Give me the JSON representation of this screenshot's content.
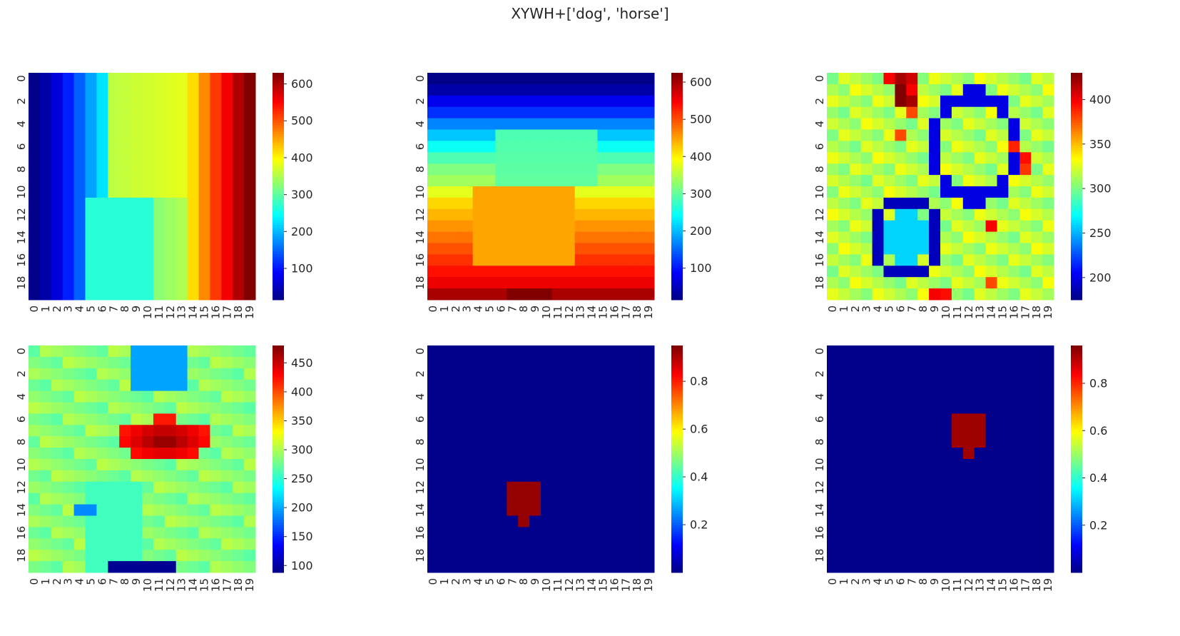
{
  "title": "XYWH+['dog', 'horse']",
  "tick_labels": [
    "0",
    "1",
    "2",
    "3",
    "4",
    "5",
    "6",
    "7",
    "8",
    "9",
    "10",
    "11",
    "12",
    "13",
    "14",
    "15",
    "16",
    "17",
    "18",
    "19"
  ],
  "y_tick_labels": [
    "0",
    "2",
    "4",
    "6",
    "8",
    "10",
    "12",
    "14",
    "16",
    "18"
  ],
  "chart_data": [
    {
      "type": "heatmap",
      "colormap": "jet",
      "rows": 20,
      "cols": 20,
      "vmin": 15,
      "vmax": 630,
      "colorbar_ticks": [
        "100",
        "200",
        "300",
        "400",
        "500",
        "600"
      ],
      "colorbar_values": [
        100,
        200,
        300,
        400,
        500,
        600
      ],
      "description_of_values": "horizontal gradient, low at left, high at right, central elliptical plateau",
      "generator": "x_gradient",
      "params": {
        "ellipse": [
          [
            10,
            6,
            4.5,
            4.5,
            390
          ],
          [
            12.5,
            12,
            3.5,
            4,
            280
          ]
        ]
      }
    },
    {
      "type": "heatmap",
      "colormap": "jet",
      "rows": 20,
      "cols": 20,
      "vmin": 15,
      "vmax": 625,
      "colorbar_ticks": [
        "100",
        "200",
        "300",
        "400",
        "500",
        "600"
      ],
      "colorbar_values": [
        100,
        200,
        300,
        400,
        500,
        600
      ],
      "generator": "y_gradient",
      "params": {
        "ellipse": [
          [
            6.5,
            9,
            3,
            5.5,
            290
          ],
          [
            13.5,
            8.5,
            3.5,
            5,
            460
          ]
        ]
      }
    },
    {
      "type": "heatmap",
      "colormap": "jet",
      "rows": 20,
      "cols": 20,
      "vmin": 175,
      "vmax": 430,
      "colorbar_ticks": [
        "200",
        "250",
        "300",
        "350",
        "400"
      ],
      "colorbar_values": [
        200,
        250,
        300,
        350,
        400
      ],
      "generator": "blob_map",
      "params": {}
    },
    {
      "type": "heatmap",
      "colormap": "jet",
      "rows": 20,
      "cols": 20,
      "vmin": 88,
      "vmax": 480,
      "colorbar_ticks": [
        "100",
        "150",
        "200",
        "250",
        "300",
        "350",
        "400",
        "450"
      ],
      "colorbar_values": [
        100,
        150,
        200,
        250,
        300,
        350,
        400,
        450
      ],
      "generator": "center_blob",
      "params": {}
    },
    {
      "type": "heatmap",
      "colormap": "jet",
      "rows": 20,
      "cols": 20,
      "vmin": 0.0,
      "vmax": 0.95,
      "colorbar_ticks": [
        "0.2",
        "0.4",
        "0.6",
        "0.8"
      ],
      "colorbar_values": [
        0.2,
        0.4,
        0.6,
        0.8
      ],
      "generator": "mask",
      "params": {
        "cells": [
          [
            12,
            7
          ],
          [
            12,
            8
          ],
          [
            12,
            9
          ],
          [
            13,
            7
          ],
          [
            13,
            8
          ],
          [
            13,
            9
          ],
          [
            14,
            7
          ],
          [
            14,
            8
          ],
          [
            14,
            9
          ],
          [
            15,
            8
          ]
        ],
        "value": 0.93
      }
    },
    {
      "type": "heatmap",
      "colormap": "jet",
      "rows": 20,
      "cols": 20,
      "vmin": 0.0,
      "vmax": 0.96,
      "colorbar_ticks": [
        "0.2",
        "0.4",
        "0.6",
        "0.8"
      ],
      "colorbar_values": [
        0.2,
        0.4,
        0.6,
        0.8
      ],
      "generator": "mask",
      "params": {
        "cells": [
          [
            6,
            11
          ],
          [
            6,
            12
          ],
          [
            6,
            13
          ],
          [
            7,
            11
          ],
          [
            7,
            12
          ],
          [
            7,
            13
          ],
          [
            8,
            11
          ],
          [
            8,
            12
          ],
          [
            8,
            13
          ],
          [
            9,
            12
          ]
        ],
        "value": 0.93
      }
    }
  ]
}
